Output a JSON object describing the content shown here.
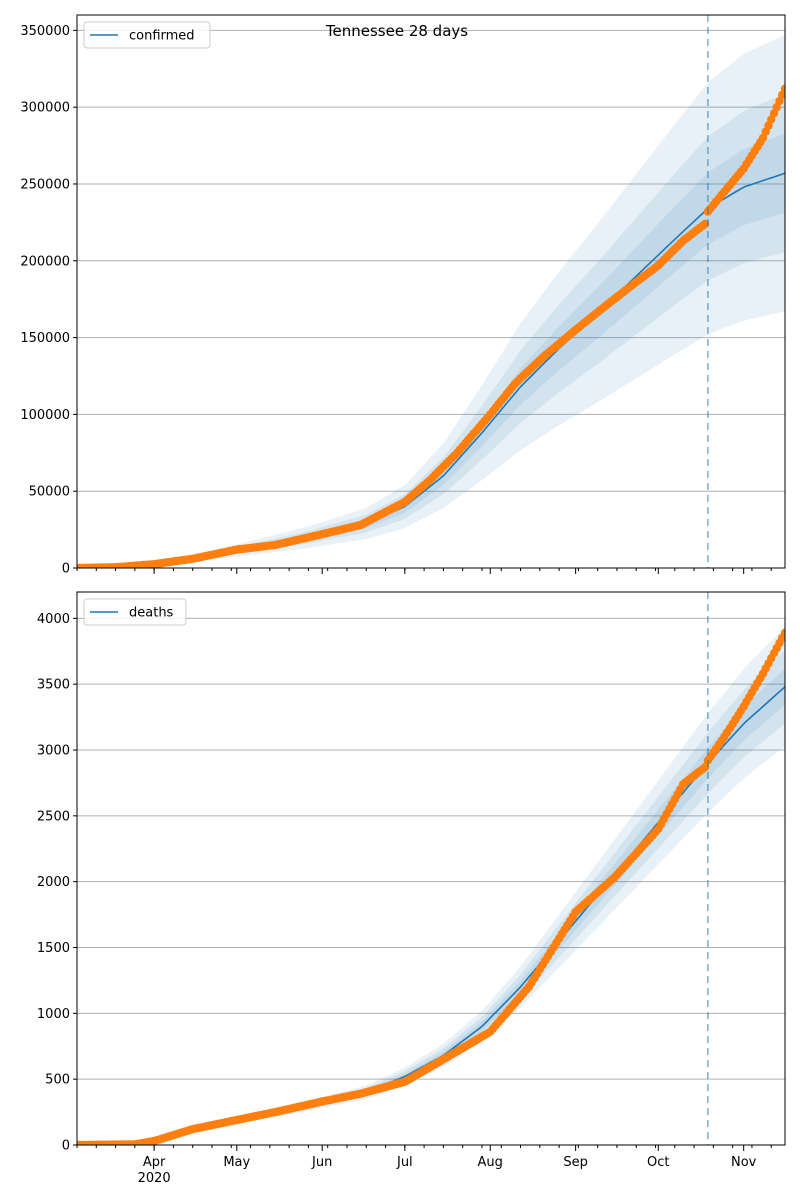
{
  "figure": {
    "title": "Tennessee 28 days"
  },
  "colors": {
    "fit": "#1f77b4",
    "observed": "#ff7f0e",
    "band": "#1f77b4",
    "grid": "#b0b0b0",
    "forecast_line": "#1f77b4"
  },
  "x_axis": {
    "start": "2020-03-04",
    "end": "2020-11-16",
    "forecast_start": "2020-10-19",
    "tick_labels": [
      "Apr",
      "May",
      "Jun",
      "Jul",
      "Aug",
      "Sep",
      "Oct",
      "Nov"
    ],
    "tick_dates": [
      "2020-04-01",
      "2020-05-01",
      "2020-06-01",
      "2020-07-01",
      "2020-08-01",
      "2020-09-01",
      "2020-10-01",
      "2020-11-01"
    ],
    "year_label": "2020"
  },
  "chart_data": [
    {
      "type": "line",
      "title": "Tennessee 28 days",
      "legend": "confirmed",
      "legend_position": "top-left",
      "grid": true,
      "ylim": [
        0,
        360000
      ],
      "yticks": [
        0,
        50000,
        100000,
        150000,
        200000,
        250000,
        300000,
        350000
      ],
      "ytick_labels": [
        "0",
        "50000",
        "100000",
        "150000",
        "200000",
        "250000",
        "300000",
        "350000"
      ],
      "fit": {
        "dates": [
          "2020-03-04",
          "2020-03-25",
          "2020-04-15",
          "2020-05-06",
          "2020-05-27",
          "2020-06-17",
          "2020-07-01",
          "2020-07-15",
          "2020-07-29",
          "2020-08-12",
          "2020-08-26",
          "2020-09-09",
          "2020-09-23",
          "2020-10-07",
          "2020-10-19",
          "2020-11-01",
          "2020-11-16"
        ],
        "values": [
          0,
          1500,
          6000,
          13000,
          20000,
          29000,
          40000,
          60000,
          88000,
          118000,
          143000,
          166000,
          190000,
          214000,
          234000,
          248000,
          257000
        ],
        "band_half_width_fraction": [
          0.1,
          0.2,
          0.35
        ]
      },
      "observed": {
        "dates": [
          "2020-03-04",
          "2020-03-18",
          "2020-03-25",
          "2020-04-01",
          "2020-04-15",
          "2020-05-01",
          "2020-05-15",
          "2020-06-01",
          "2020-06-15",
          "2020-07-01",
          "2020-07-10",
          "2020-07-20",
          "2020-08-01",
          "2020-08-10",
          "2020-08-20",
          "2020-09-01",
          "2020-09-10",
          "2020-09-20",
          "2020-10-01",
          "2020-10-10",
          "2020-10-18",
          "2020-10-19",
          "2020-10-25",
          "2020-11-01",
          "2020-11-08",
          "2020-11-16"
        ],
        "values": [
          0,
          500,
          1500,
          2500,
          6000,
          12000,
          15000,
          22000,
          28000,
          43000,
          57000,
          75000,
          100000,
          120000,
          137000,
          155000,
          168000,
          182000,
          197000,
          213000,
          224000,
          232000,
          245000,
          260000,
          280000,
          312000
        ]
      }
    },
    {
      "type": "line",
      "legend": "deaths",
      "legend_position": "top-left",
      "grid": true,
      "ylim": [
        0,
        4200
      ],
      "yticks": [
        0,
        500,
        1000,
        1500,
        2000,
        2500,
        3000,
        3500,
        4000
      ],
      "ytick_labels": [
        "0",
        "500",
        "1000",
        "1500",
        "2000",
        "2500",
        "3000",
        "3500",
        "4000"
      ],
      "fit": {
        "dates": [
          "2020-03-04",
          "2020-03-25",
          "2020-04-08",
          "2020-04-22",
          "2020-05-06",
          "2020-05-27",
          "2020-06-17",
          "2020-07-01",
          "2020-07-15",
          "2020-07-29",
          "2020-08-12",
          "2020-08-26",
          "2020-09-09",
          "2020-09-23",
          "2020-10-07",
          "2020-10-19",
          "2020-11-01",
          "2020-11-16"
        ],
        "values": [
          0,
          20,
          80,
          150,
          210,
          300,
          400,
          520,
          680,
          900,
          1200,
          1550,
          1900,
          2250,
          2600,
          2900,
          3200,
          3480
        ],
        "band_half_width_fraction": [
          0.04,
          0.08,
          0.13
        ]
      },
      "observed": {
        "dates": [
          "2020-03-04",
          "2020-03-25",
          "2020-04-01",
          "2020-04-15",
          "2020-05-01",
          "2020-05-15",
          "2020-06-01",
          "2020-06-15",
          "2020-07-01",
          "2020-07-15",
          "2020-08-01",
          "2020-08-15",
          "2020-09-01",
          "2020-09-15",
          "2020-10-01",
          "2020-10-10",
          "2020-10-18",
          "2020-10-19",
          "2020-10-25",
          "2020-11-01",
          "2020-11-08",
          "2020-11-16"
        ],
        "values": [
          0,
          5,
          30,
          120,
          190,
          250,
          330,
          390,
          480,
          650,
          860,
          1200,
          1770,
          2030,
          2400,
          2740,
          2870,
          2920,
          3100,
          3330,
          3580,
          3890
        ]
      }
    }
  ]
}
